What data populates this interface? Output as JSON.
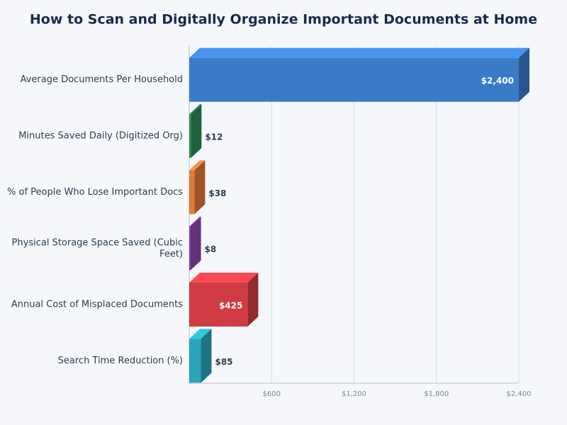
{
  "chart_data": {
    "type": "bar",
    "orientation": "horizontal",
    "title": "How to Scan and Digitally Organize Important Documents at Home",
    "categories": [
      "Average Documents Per Household",
      "Minutes Saved Daily (Digitized Org)",
      "% of People Who Lose Important Docs",
      "Physical Storage Space Saved (Cubic Feet)",
      "Annual Cost of Misplaced Documents",
      "Search Time Reduction (%)"
    ],
    "values": [
      2400,
      12,
      38,
      8,
      425,
      85
    ],
    "value_labels": [
      "$2,400",
      "$12",
      "$38",
      "$8",
      "$425",
      "$85"
    ],
    "colors": [
      "#3a7bc8",
      "#2e8b57",
      "#e07a35",
      "#8e44ad",
      "#d03c44",
      "#2aa6b8"
    ],
    "xlim": [
      0,
      2400
    ],
    "xticks": [
      {
        "value": 600,
        "label": "$600"
      },
      {
        "value": 1200,
        "label": "$1,200"
      },
      {
        "value": 1800,
        "label": "$1,800"
      },
      {
        "value": 2400,
        "label": "$2,400"
      }
    ],
    "grid": true
  }
}
